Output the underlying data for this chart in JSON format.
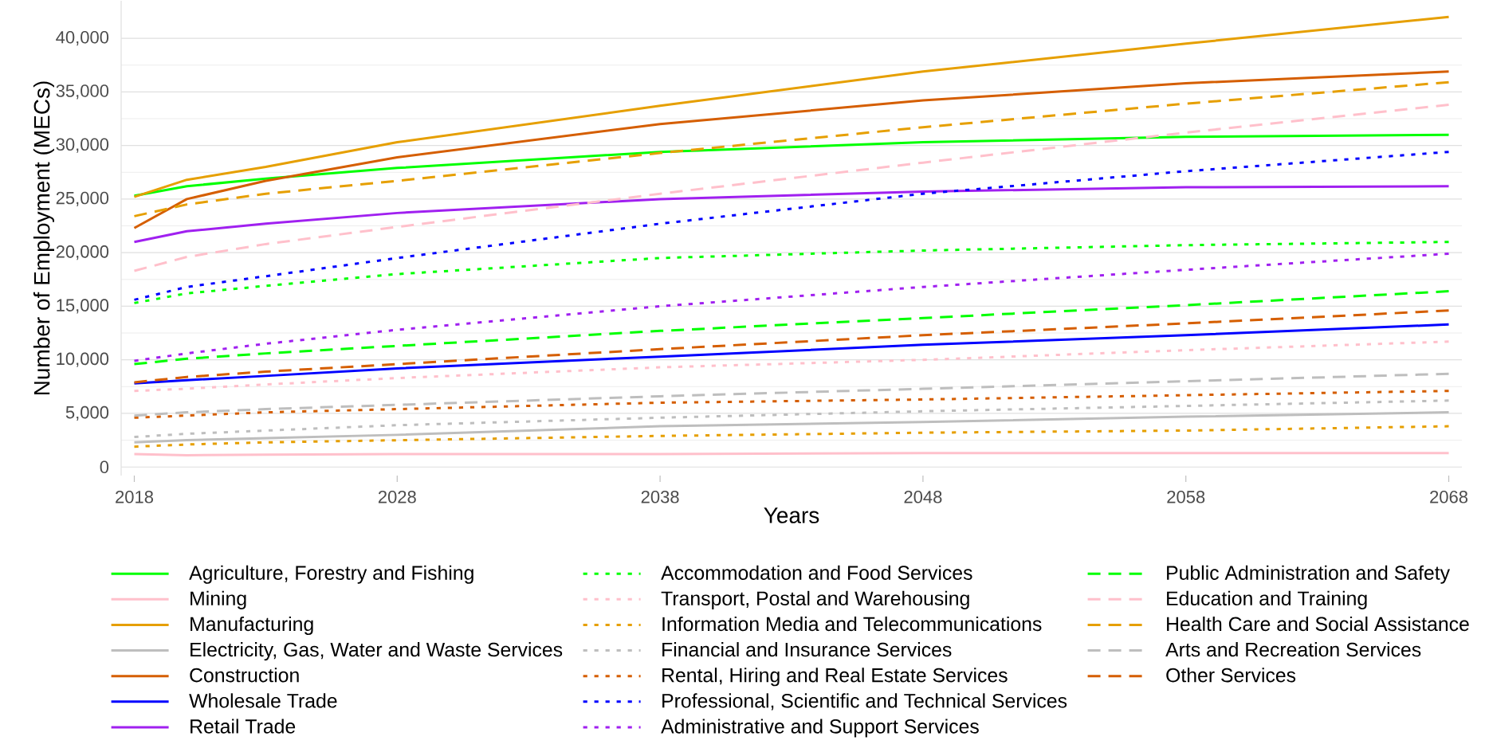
{
  "chart_data": {
    "type": "line",
    "xlabel": "Years",
    "ylabel": "Number of Employment (MECs)",
    "x": [
      2018,
      2020,
      2023,
      2028,
      2038,
      2048,
      2058,
      2068
    ],
    "xlim": [
      2017.5,
      2068.5
    ],
    "xticks": [
      2018,
      2028,
      2038,
      2048,
      2058,
      2068
    ],
    "ylim": [
      -800,
      43500
    ],
    "yticks": [
      0,
      {
        "value": 5000,
        "label": "5,000"
      },
      {
        "value": 10000,
        "label": "10,000"
      },
      {
        "value": 15000,
        "label": "15,000"
      },
      {
        "value": 20000,
        "label": "20,000"
      },
      {
        "value": 25000,
        "label": "25,000"
      },
      {
        "value": 30000,
        "label": "30,000"
      },
      {
        "value": 35000,
        "label": "35,000"
      },
      {
        "value": 40000,
        "label": "40,000"
      }
    ],
    "grid": "y",
    "legend": "bottom",
    "series": [
      {
        "name": "Agriculture, Forestry and Fishing",
        "color": "#00ff00",
        "line_style": "solid",
        "values": [
          25300,
          26200,
          26900,
          27900,
          29400,
          30300,
          30800,
          31000
        ]
      },
      {
        "name": "Mining",
        "color": "#ffc0cb",
        "line_style": "solid",
        "values": [
          1200,
          1100,
          1150,
          1200,
          1200,
          1300,
          1300,
          1300
        ]
      },
      {
        "name": "Manufacturing",
        "color": "#e69f00",
        "line_style": "solid",
        "values": [
          25200,
          26800,
          28000,
          30300,
          33700,
          36900,
          39500,
          42000
        ]
      },
      {
        "name": "Electricity, Gas, Water and Waste Services",
        "color": "#bebebe",
        "line_style": "solid",
        "values": [
          2300,
          2500,
          2700,
          3000,
          3800,
          4200,
          4700,
          5100
        ]
      },
      {
        "name": "Construction",
        "color": "#d55e00",
        "line_style": "solid",
        "values": [
          22300,
          25000,
          26700,
          28900,
          32000,
          34200,
          35800,
          36900
        ]
      },
      {
        "name": "Wholesale Trade",
        "color": "#0000ff",
        "line_style": "solid",
        "values": [
          7800,
          8100,
          8500,
          9200,
          10300,
          11400,
          12300,
          13300
        ]
      },
      {
        "name": "Retail Trade",
        "color": "#a020f0",
        "line_style": "solid",
        "values": [
          21000,
          22000,
          22700,
          23700,
          25000,
          25700,
          26100,
          26200
        ]
      },
      {
        "name": "Accommodation and Food Services",
        "color": "#00ff00",
        "line_style": "dotted",
        "values": [
          15300,
          16200,
          16900,
          18000,
          19500,
          20200,
          20700,
          21000
        ]
      },
      {
        "name": "Transport, Postal and Warehousing",
        "color": "#ffc0cb",
        "line_style": "dotted",
        "values": [
          7100,
          7300,
          7700,
          8300,
          9300,
          10000,
          10900,
          11700
        ]
      },
      {
        "name": "Information Media and Telecommunications",
        "color": "#e69f00",
        "line_style": "dotted",
        "values": [
          1900,
          2100,
          2300,
          2500,
          2900,
          3200,
          3400,
          3800
        ]
      },
      {
        "name": "Financial and Insurance Services",
        "color": "#bebebe",
        "line_style": "dotted",
        "values": [
          2800,
          3100,
          3400,
          3900,
          4600,
          5200,
          5700,
          6200
        ]
      },
      {
        "name": "Rental, Hiring and Real Estate Services",
        "color": "#d55e00",
        "line_style": "dotted",
        "values": [
          4600,
          4800,
          5100,
          5400,
          6000,
          6300,
          6700,
          7100
        ]
      },
      {
        "name": "Professional, Scientific and Technical Services",
        "color": "#0000ff",
        "line_style": "dotted",
        "values": [
          15600,
          16800,
          17800,
          19500,
          22700,
          25500,
          27600,
          29400
        ]
      },
      {
        "name": "Administrative and Support Services",
        "color": "#a020f0",
        "line_style": "dotted",
        "values": [
          9900,
          10600,
          11500,
          12800,
          15000,
          16800,
          18400,
          19900
        ]
      },
      {
        "name": "Public Administration and Safety",
        "color": "#00ff00",
        "line_style": "dashed",
        "values": [
          9600,
          10100,
          10600,
          11300,
          12700,
          13900,
          15100,
          16400
        ]
      },
      {
        "name": "Education and Training",
        "color": "#ffc0cb",
        "line_style": "dashed",
        "values": [
          18300,
          19600,
          20800,
          22400,
          25500,
          28400,
          31200,
          33800
        ]
      },
      {
        "name": "Health Care and Social Assistance",
        "color": "#e69f00",
        "line_style": "dashed",
        "values": [
          23400,
          24500,
          25500,
          26700,
          29300,
          31700,
          33900,
          35900
        ]
      },
      {
        "name": "Arts and Recreation Services",
        "color": "#bebebe",
        "line_style": "dashed",
        "values": [
          4800,
          5100,
          5400,
          5800,
          6600,
          7300,
          8000,
          8700
        ]
      },
      {
        "name": "Other Services",
        "color": "#d55e00",
        "line_style": "dashed",
        "values": [
          7900,
          8400,
          8900,
          9600,
          11000,
          12300,
          13400,
          14600
        ]
      }
    ]
  }
}
